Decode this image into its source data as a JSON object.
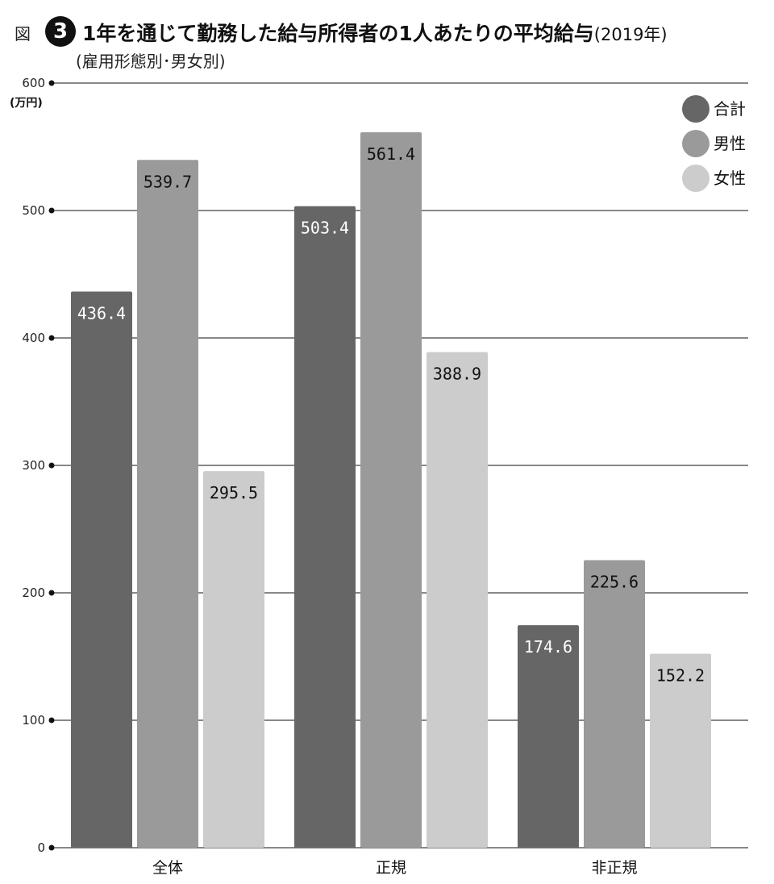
{
  "header": {
    "figure_label": "図",
    "figure_number": "3",
    "title": "1年を通じて勤務した給与所得者の1人あたりの平均給与",
    "title_year": "(2019年)",
    "subtitle": "(雇用形態別･男女別)"
  },
  "chart_data": {
    "type": "bar",
    "title": "1年を通じて勤務した給与所得者の1人あたりの平均給与(2019年)",
    "subtitle": "(雇用形態別･男女別)",
    "xlabel": "",
    "ylabel": "(万円)",
    "ylim": [
      0,
      600
    ],
    "yticks": [
      0,
      100,
      200,
      300,
      400,
      500,
      600
    ],
    "grid": true,
    "legend_position": "top-right",
    "categories": [
      "全体",
      "正規",
      "非正規"
    ],
    "series": [
      {
        "name": "合計",
        "color": "#666666",
        "label_color": "#ffffff",
        "values": [
          436.4,
          503.4,
          174.6
        ]
      },
      {
        "name": "男性",
        "color": "#9a9a9a",
        "label_color": "#111111",
        "values": [
          539.7,
          561.4,
          225.6
        ]
      },
      {
        "name": "女性",
        "color": "#cccccc",
        "label_color": "#111111",
        "values": [
          295.5,
          388.9,
          152.2
        ]
      }
    ]
  }
}
